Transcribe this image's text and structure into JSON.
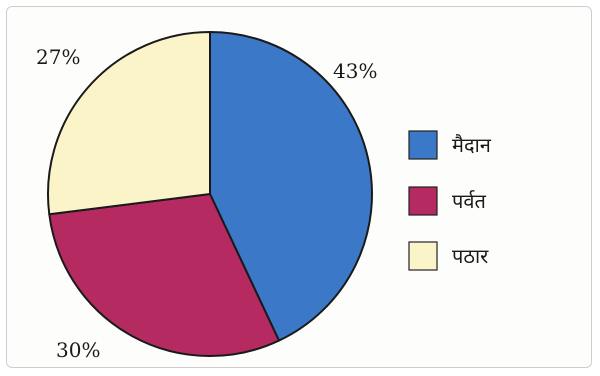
{
  "chart_data": {
    "type": "pie",
    "title": "",
    "slices": [
      {
        "label": "मैदान",
        "value": 43,
        "display": "43%",
        "color": "#3b78c8"
      },
      {
        "label": "पर्वत",
        "value": 30,
        "display": "30%",
        "color": "#b62a62"
      },
      {
        "label": "पठार",
        "value": 27,
        "display": "27%",
        "color": "#fbf4c8"
      }
    ],
    "legend_position": "right",
    "start_angle_deg": 0,
    "direction": "clockwise"
  }
}
